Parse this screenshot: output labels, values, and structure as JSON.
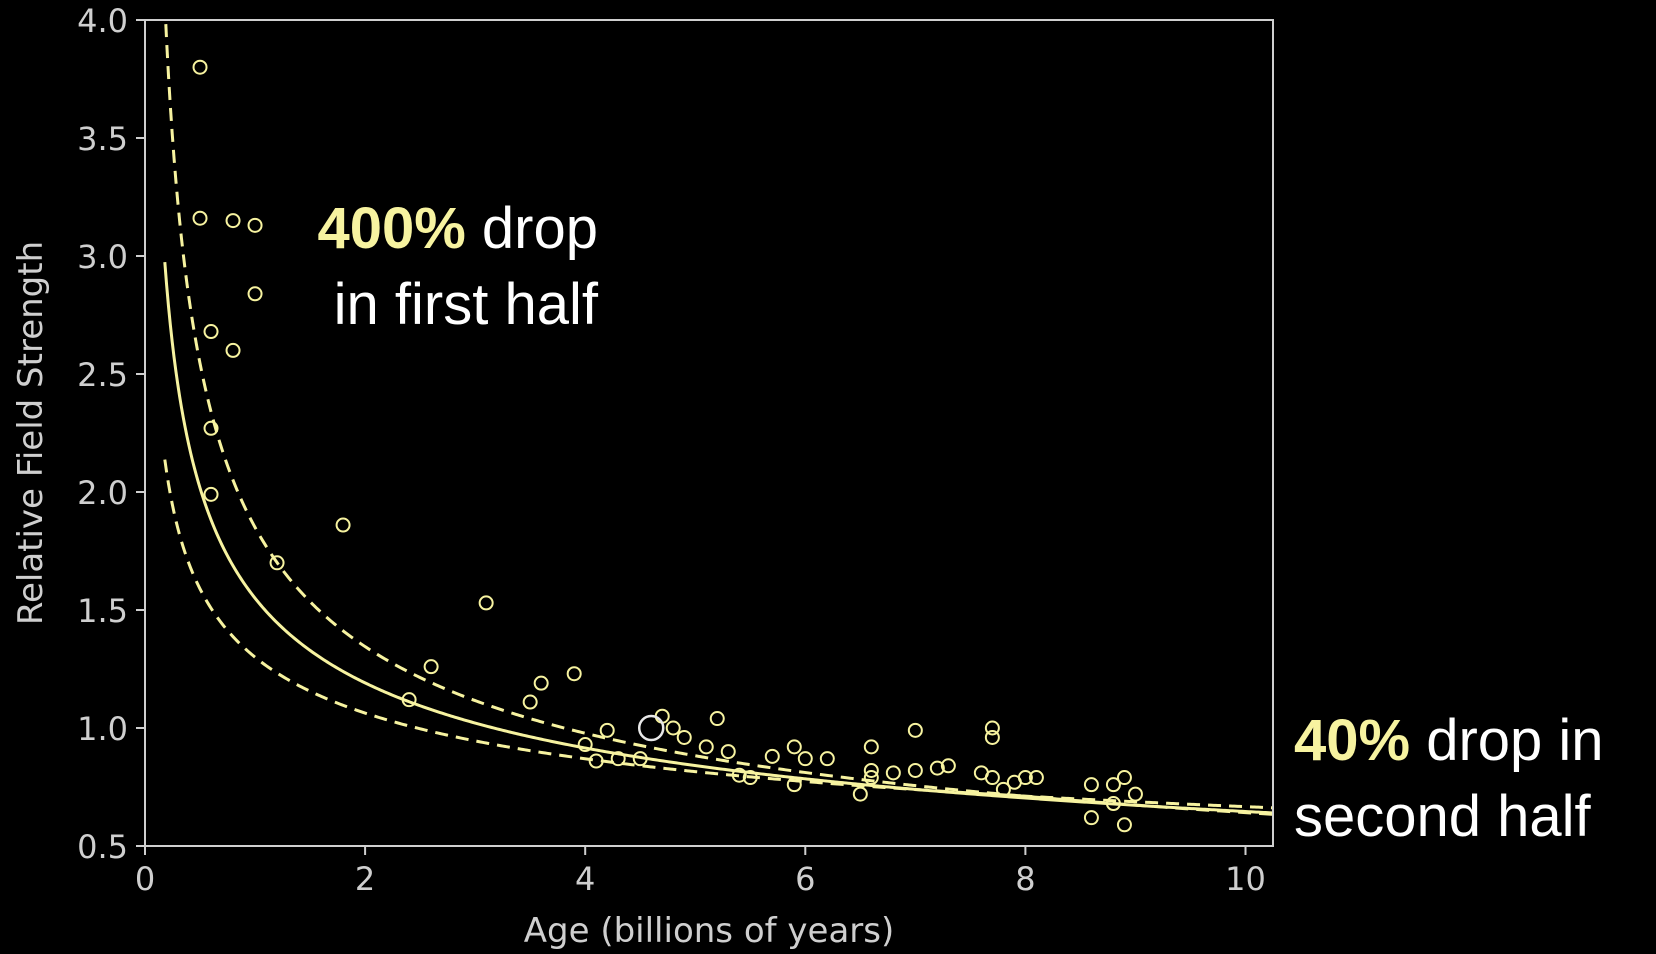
{
  "chart_data": {
    "type": "scatter",
    "xlabel": "Age (billions of years)",
    "ylabel": "Relative Field Strength",
    "xlim": [
      0,
      10.25
    ],
    "ylim": [
      0.5,
      4.0
    ],
    "xticks": [
      "0",
      "2",
      "4",
      "6",
      "8",
      "10"
    ],
    "yticks": [
      "0.5",
      "1.0",
      "1.5",
      "2.0",
      "2.5",
      "3.0",
      "3.5",
      "4.0"
    ],
    "grid": false,
    "colors": {
      "data": "#f7f3a0",
      "axes": "#cfcfcf",
      "background": "#000000"
    },
    "points": [
      [
        0.5,
        3.8
      ],
      [
        0.5,
        3.16
      ],
      [
        0.6,
        2.68
      ],
      [
        0.6,
        2.27
      ],
      [
        0.6,
        1.99
      ],
      [
        0.8,
        3.15
      ],
      [
        0.8,
        2.6
      ],
      [
        1.0,
        3.13
      ],
      [
        1.0,
        2.84
      ],
      [
        1.2,
        1.7
      ],
      [
        1.8,
        1.86
      ],
      [
        2.4,
        1.12
      ],
      [
        2.6,
        1.26
      ],
      [
        3.1,
        1.53
      ],
      [
        3.5,
        1.11
      ],
      [
        3.6,
        1.19
      ],
      [
        3.9,
        1.23
      ],
      [
        4.0,
        0.93
      ],
      [
        4.1,
        0.86
      ],
      [
        4.2,
        0.99
      ],
      [
        4.3,
        0.87
      ],
      [
        4.5,
        0.87
      ],
      [
        4.7,
        1.05
      ],
      [
        4.8,
        1.0
      ],
      [
        4.9,
        0.96
      ],
      [
        5.1,
        0.92
      ],
      [
        5.2,
        1.04
      ],
      [
        5.3,
        0.9
      ],
      [
        5.4,
        0.8
      ],
      [
        5.5,
        0.79
      ],
      [
        5.7,
        0.88
      ],
      [
        5.9,
        0.92
      ],
      [
        5.9,
        0.76
      ],
      [
        6.0,
        0.87
      ],
      [
        6.2,
        0.87
      ],
      [
        6.5,
        0.72
      ],
      [
        6.6,
        0.92
      ],
      [
        6.6,
        0.82
      ],
      [
        6.6,
        0.79
      ],
      [
        6.8,
        0.81
      ],
      [
        7.0,
        0.99
      ],
      [
        7.0,
        0.82
      ],
      [
        7.2,
        0.83
      ],
      [
        7.3,
        0.84
      ],
      [
        7.6,
        0.81
      ],
      [
        7.7,
        1.0
      ],
      [
        7.7,
        0.96
      ],
      [
        7.7,
        0.79
      ],
      [
        7.8,
        0.74
      ],
      [
        7.9,
        0.77
      ],
      [
        8.0,
        0.79
      ],
      [
        8.1,
        0.79
      ],
      [
        8.6,
        0.76
      ],
      [
        8.6,
        0.62
      ],
      [
        8.8,
        0.76
      ],
      [
        8.8,
        0.68
      ],
      [
        8.9,
        0.79
      ],
      [
        8.9,
        0.59
      ],
      [
        9.0,
        0.72
      ]
    ],
    "highlight_point": [
      4.6,
      1.0
    ],
    "fit": {
      "form": "y = a * x^b",
      "a": 1.55,
      "b": -0.38
    },
    "upper_band": {
      "form": "y = a * x^b",
      "a": 1.85,
      "b": -0.46
    },
    "lower_band": {
      "form": "y = a * x^b",
      "a": 1.3,
      "b": -0.29
    }
  },
  "annotations": {
    "first": {
      "highlight": "400%",
      "line1_rest": " drop",
      "line2": "in first half"
    },
    "second": {
      "highlight": "40%",
      "line1_rest": " drop in",
      "line2": "second half"
    }
  }
}
